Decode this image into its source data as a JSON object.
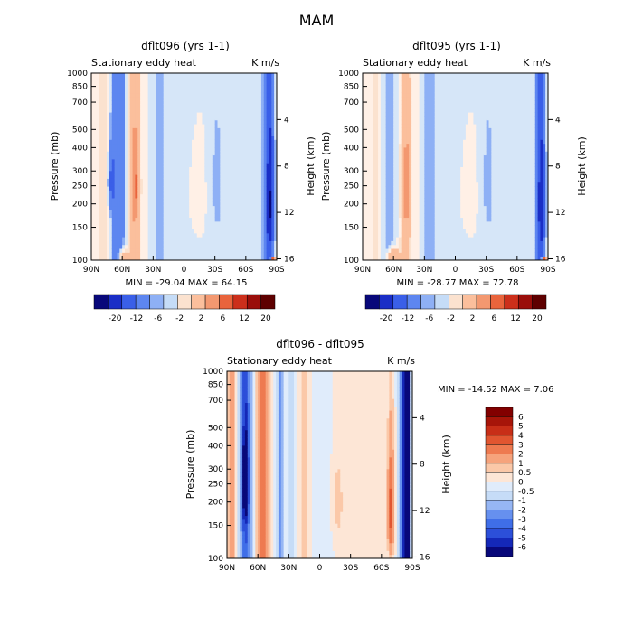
{
  "figure": {
    "season": "MAM"
  },
  "colors": {
    "top_scale": [
      "#08087a",
      "#1a2ec6",
      "#3a5fe8",
      "#5d86f0",
      "#8eb0f5",
      "#c5dcf7",
      "#fbe2cf",
      "#fbbf9c",
      "#f39870",
      "#e9643c",
      "#cc2f1b",
      "#9a0e0a",
      "#5e0000"
    ],
    "diff_scale": [
      "#08087a",
      "#1428b8",
      "#2c4fd9",
      "#3f6ee8",
      "#6690ef",
      "#96b6f4",
      "#c6dcf7",
      "#e0ecfb",
      "#fde6d6",
      "#fbc8a8",
      "#f6a37c",
      "#ee7a50",
      "#e15530",
      "#c82e17",
      "#a71509",
      "#820000"
    ]
  },
  "chart_data": [
    {
      "type": "heatmap",
      "id": "top-left",
      "title": "dflt096 (yrs 1-1)",
      "subtitle": "Stationary eddy heat",
      "units": "K m/s",
      "ylabel": "Pressure (mb)",
      "y2label": "Height (km)",
      "xticks": [
        "90N",
        "60N",
        "30N",
        "0",
        "30S",
        "60S",
        "90S"
      ],
      "yticks": [
        "100",
        "150",
        "200",
        "250",
        "300",
        "400",
        "500",
        "700",
        "850",
        "1000"
      ],
      "y2ticks": [
        "16",
        "12",
        "8",
        "4"
      ],
      "stats": "MIN = -29.04   MAX =  64.15",
      "colorbar_labels": [
        "-20",
        "-12",
        "-6",
        "-2",
        "2",
        "6",
        "12",
        "20"
      ],
      "xlim": [
        90,
        -90
      ],
      "ylim": [
        1000,
        100
      ],
      "features": [
        {
          "lat": 78,
          "width": 5,
          "amp": 1.8
        },
        {
          "lat": 64,
          "width": 6,
          "amp": -4.5
        },
        {
          "lat": 70,
          "width": 3,
          "amp": -7.5,
          "p": 380,
          "dp": 120
        },
        {
          "lat": 48,
          "width": 5,
          "amp": 4.8
        },
        {
          "lat": 47,
          "width": 3,
          "amp": 9.5,
          "p": 400,
          "dp": 160
        },
        {
          "lat": 60,
          "width": 5,
          "amp": 6.0,
          "p": 960,
          "dp": 90
        },
        {
          "lat": 25,
          "width": 5,
          "amp": -1.6
        },
        {
          "lat": 5,
          "width": 12,
          "amp": -1.0
        },
        {
          "lat": -10,
          "width": 6,
          "amp": 1.0,
          "p": 450,
          "dp": 200
        },
        {
          "lat": -32,
          "width": 5,
          "amp": -1.8,
          "p": 400,
          "dp": 300
        },
        {
          "lat": -82,
          "width": 4,
          "amp": -8.5
        },
        {
          "lat": -84,
          "width": 3,
          "amp": -14.0,
          "p": 500,
          "dp": 300
        },
        {
          "lat": -86,
          "width": 2,
          "amp": 25.0,
          "p": 1000,
          "dp": 40
        }
      ]
    },
    {
      "type": "heatmap",
      "id": "top-right",
      "title": "dflt095 (yrs 1-1)",
      "subtitle": "Stationary eddy heat",
      "units": "K m/s",
      "ylabel": "Pressure (mb)",
      "y2label": "Height (km)",
      "xticks": [
        "90N",
        "60N",
        "30N",
        "0",
        "30S",
        "60S",
        "90S"
      ],
      "yticks": [
        "100",
        "150",
        "200",
        "250",
        "300",
        "400",
        "500",
        "700",
        "850",
        "1000"
      ],
      "y2ticks": [
        "16",
        "12",
        "8",
        "4"
      ],
      "stats": "MIN = -28.77   MAX =  72.78",
      "colorbar_labels": [
        "-20",
        "-12",
        "-6",
        "-2",
        "2",
        "6",
        "12",
        "20"
      ],
      "xlim": [
        90,
        -90
      ],
      "ylim": [
        1000,
        100
      ],
      "features": [
        {
          "lat": 78,
          "width": 5,
          "amp": 1.2
        },
        {
          "lat": 64,
          "width": 6,
          "amp": -1.5
        },
        {
          "lat": 48,
          "width": 5,
          "amp": 4.0
        },
        {
          "lat": 47,
          "width": 3,
          "amp": 9.0,
          "p": 420,
          "dp": 160
        },
        {
          "lat": 60,
          "width": 5,
          "amp": 7.0,
          "p": 960,
          "dp": 90
        },
        {
          "lat": 25,
          "width": 5,
          "amp": -1.8
        },
        {
          "lat": 5,
          "width": 12,
          "amp": -1.0
        },
        {
          "lat": -10,
          "width": 6,
          "amp": 1.0,
          "p": 450,
          "dp": 200
        },
        {
          "lat": -32,
          "width": 5,
          "amp": -1.8,
          "p": 400,
          "dp": 300
        },
        {
          "lat": -82,
          "width": 4,
          "amp": -7.0
        },
        {
          "lat": -84,
          "width": 3,
          "amp": -14.0,
          "p": 500,
          "dp": 300
        },
        {
          "lat": -86,
          "width": 2,
          "amp": 25.0,
          "p": 1000,
          "dp": 40
        }
      ]
    },
    {
      "type": "heatmap",
      "id": "bottom-diff",
      "title": "dflt096 - dflt095",
      "subtitle": "Stationary eddy heat",
      "units": "K m/s",
      "ylabel": "Pressure (mb)",
      "y2label": "Height (km)",
      "xticks": [
        "90N",
        "60N",
        "30N",
        "0",
        "30S",
        "60S",
        "90S"
      ],
      "yticks": [
        "100",
        "150",
        "200",
        "250",
        "300",
        "400",
        "500",
        "700",
        "850",
        "1000"
      ],
      "y2ticks": [
        "16",
        "12",
        "8",
        "4"
      ],
      "stats": "MIN = -14.52   MAX =    7.06",
      "colorbar_labels": [
        "6",
        "5",
        "4",
        "3",
        "2",
        "1",
        "0.5",
        "0",
        "-0.5",
        "-1",
        "-2",
        "-3",
        "-4",
        "-5",
        "-6"
      ],
      "xlim": [
        90,
        -90
      ],
      "ylim": [
        1000,
        100
      ],
      "features": [
        {
          "lat": 85,
          "width": 4,
          "amp": 1.5
        },
        {
          "lat": 72,
          "width": 5,
          "amp": -4.0
        },
        {
          "lat": 72,
          "width": 3,
          "amp": -6.0,
          "p": 400,
          "dp": 200
        },
        {
          "lat": 55,
          "width": 5,
          "amp": 2.8
        },
        {
          "lat": 38,
          "width": 3,
          "amp": -2.6
        },
        {
          "lat": 28,
          "width": 3,
          "amp": -1.0
        },
        {
          "lat": 15,
          "width": 6,
          "amp": 0.6
        },
        {
          "lat": 0,
          "width": 8,
          "amp": -0.4
        },
        {
          "lat": -18,
          "width": 5,
          "amp": 0.8,
          "p": 500,
          "dp": 250
        },
        {
          "lat": -40,
          "width": 6,
          "amp": 0.3
        },
        {
          "lat": -69,
          "width": 3,
          "amp": 3.5,
          "p": 550,
          "dp": 350
        },
        {
          "lat": -82,
          "width": 4,
          "amp": -5.5
        },
        {
          "lat": -85,
          "width": 2,
          "amp": -8.0
        }
      ]
    }
  ]
}
